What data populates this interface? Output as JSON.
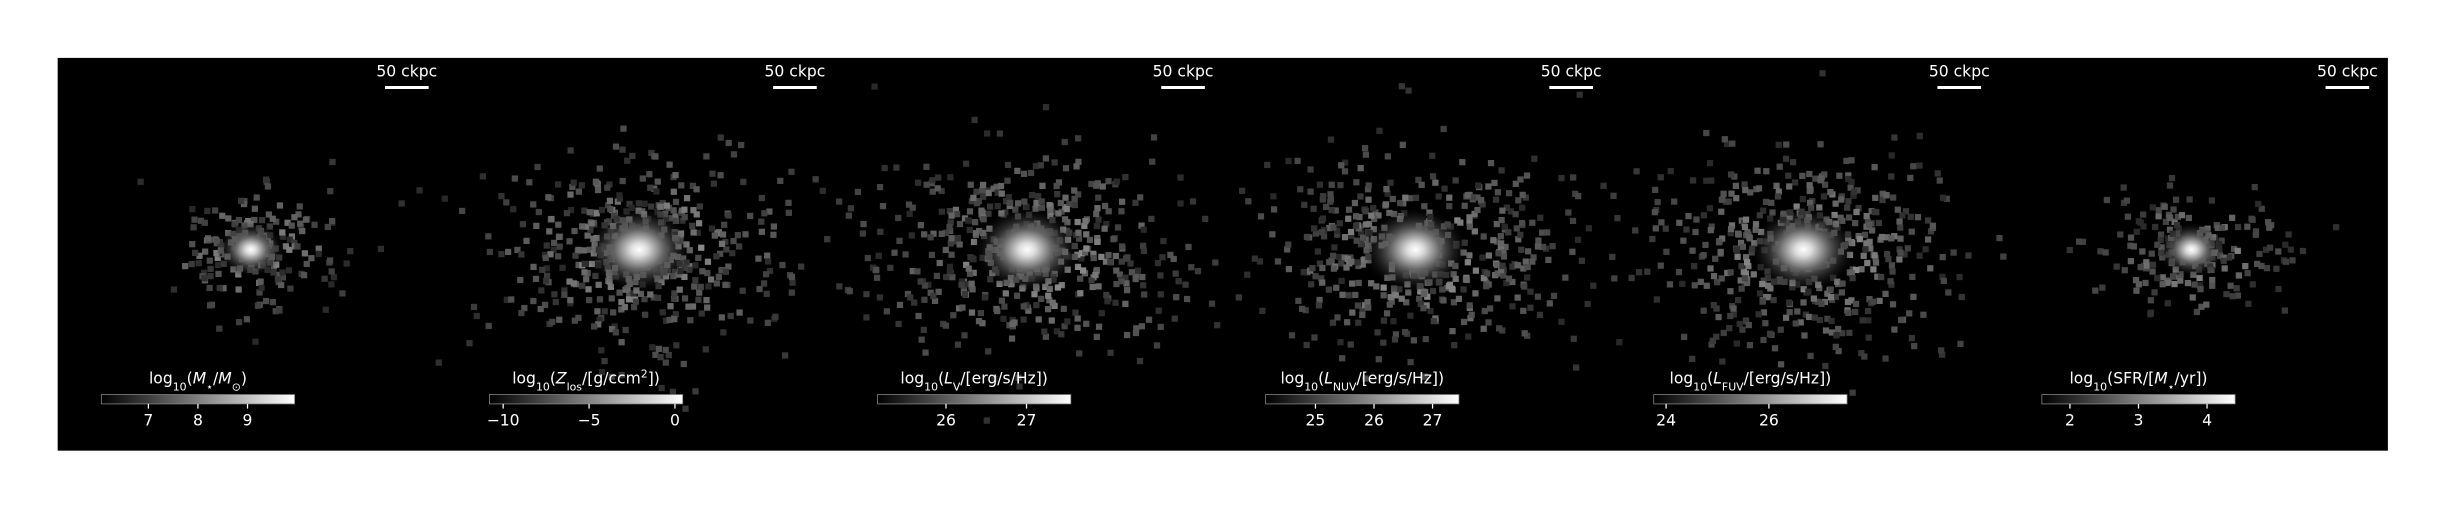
{
  "chart_data": [
    {
      "type": "image",
      "scale_bar": "50 ckpc",
      "extent": "compact",
      "colorbar": {
        "label": [
          {
            "text": "log"
          },
          {
            "text": "10",
            "sub": true
          },
          {
            "text": "("
          },
          {
            "text": "M",
            "italic": true
          },
          {
            "text": "⋆",
            "sub": true
          },
          {
            "text": "/"
          },
          {
            "text": "M",
            "italic": true
          },
          {
            "text": "⊙",
            "sub": true
          },
          {
            "text": ")"
          }
        ],
        "lim": [
          6.05,
          9.95
        ],
        "ticks": [
          7,
          8,
          9
        ]
      }
    },
    {
      "type": "image",
      "scale_bar": "50 ckpc",
      "extent": "wide",
      "colorbar": {
        "label": [
          {
            "text": "log"
          },
          {
            "text": "10",
            "sub": true
          },
          {
            "text": "("
          },
          {
            "text": "Z",
            "italic": true
          },
          {
            "text": "los",
            "sub": true
          },
          {
            "text": "/[g/ccm"
          },
          {
            "text": "2",
            "sup": true
          },
          {
            "text": "])"
          }
        ],
        "lim": [
          -10.8,
          0.45
        ],
        "ticks": [
          {
            "value": -10,
            "label": "−10"
          },
          {
            "value": -5,
            "label": "−5"
          },
          0
        ]
      }
    },
    {
      "type": "image",
      "scale_bar": "50 ckpc",
      "extent": "wide",
      "colorbar": {
        "label": [
          {
            "text": "log"
          },
          {
            "text": "10",
            "sub": true
          },
          {
            "text": "("
          },
          {
            "text": "L",
            "italic": true
          },
          {
            "text": "V",
            "sub": true
          },
          {
            "text": "/[erg/s/Hz])"
          }
        ],
        "lim": [
          25.15,
          27.55
        ],
        "ticks": [
          26,
          27
        ]
      }
    },
    {
      "type": "image",
      "scale_bar": "50 ckpc",
      "extent": "wide",
      "colorbar": {
        "label": [
          {
            "text": "log"
          },
          {
            "text": "10",
            "sub": true
          },
          {
            "text": "("
          },
          {
            "text": "L",
            "italic": true
          },
          {
            "text": "NUV",
            "sub": true
          },
          {
            "text": "/[erg/s/Hz])"
          }
        ],
        "lim": [
          24.15,
          27.45
        ],
        "ticks": [
          25,
          26,
          27
        ]
      }
    },
    {
      "type": "image",
      "scale_bar": "50 ckpc",
      "extent": "wide",
      "colorbar": {
        "label": [
          {
            "text": "log"
          },
          {
            "text": "10",
            "sub": true
          },
          {
            "text": "("
          },
          {
            "text": "L",
            "italic": true
          },
          {
            "text": "FUV",
            "sub": true
          },
          {
            "text": "/[erg/s/Hz])"
          }
        ],
        "lim": [
          23.76,
          27.52
        ],
        "ticks": [
          24,
          26
        ]
      }
    },
    {
      "type": "image",
      "scale_bar": "50 ckpc",
      "extent": "compact",
      "colorbar": {
        "label": [
          {
            "text": "log"
          },
          {
            "text": "10",
            "sub": true
          },
          {
            "text": "(SFR/["
          },
          {
            "text": "M",
            "italic": true
          },
          {
            "text": "⋆",
            "sub": true
          },
          {
            "text": "/yr])"
          }
        ],
        "lim": [
          1.59,
          4.41
        ],
        "ticks": [
          2,
          3,
          4
        ]
      }
    }
  ]
}
